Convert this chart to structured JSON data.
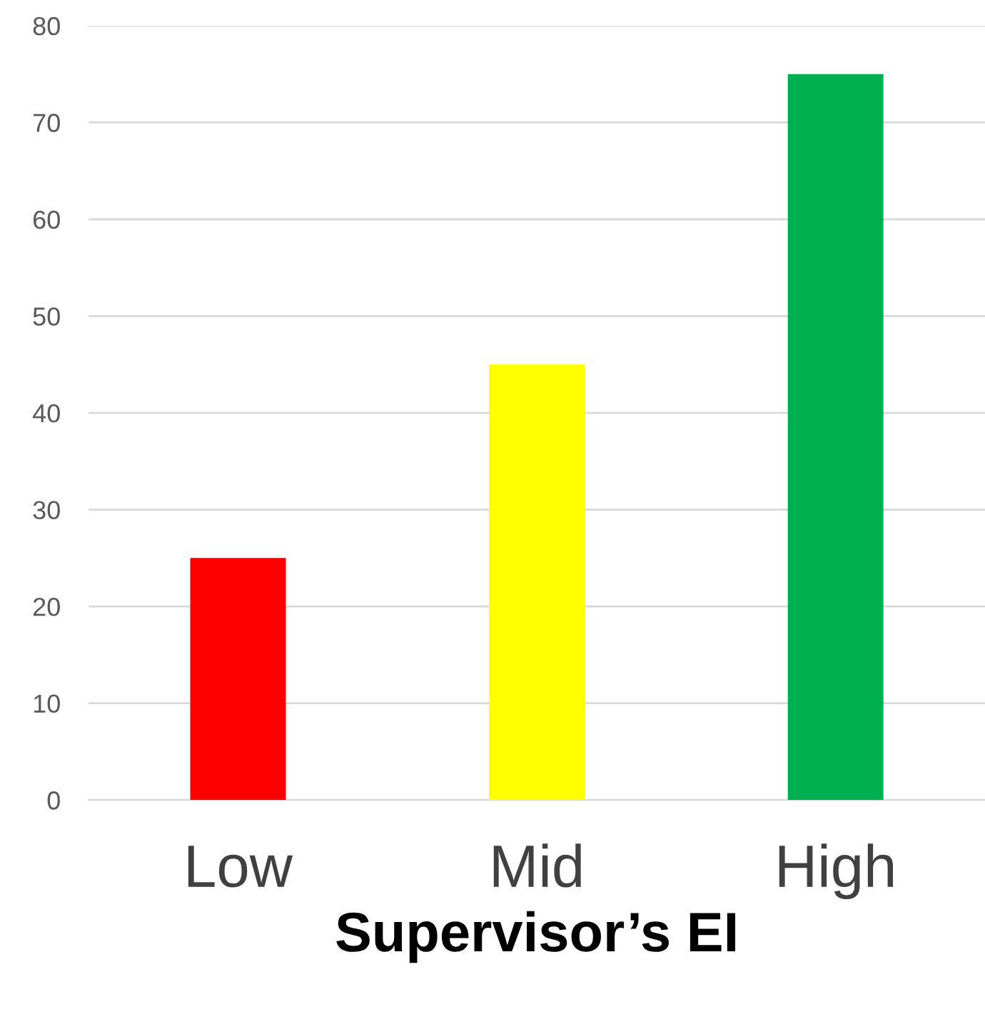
{
  "chart_data": {
    "type": "bar",
    "xlabel": "Supervisor’s EI",
    "categories": [
      "Low",
      "Mid",
      "High"
    ],
    "values": [
      25,
      45,
      75
    ],
    "colors": [
      "#ff0000",
      "#ffff00",
      "#00b050"
    ],
    "ylim": [
      0,
      80
    ],
    "yticks": [
      0,
      10,
      20,
      30,
      40,
      50,
      60,
      70,
      80
    ],
    "grid": "y",
    "legend": false
  }
}
